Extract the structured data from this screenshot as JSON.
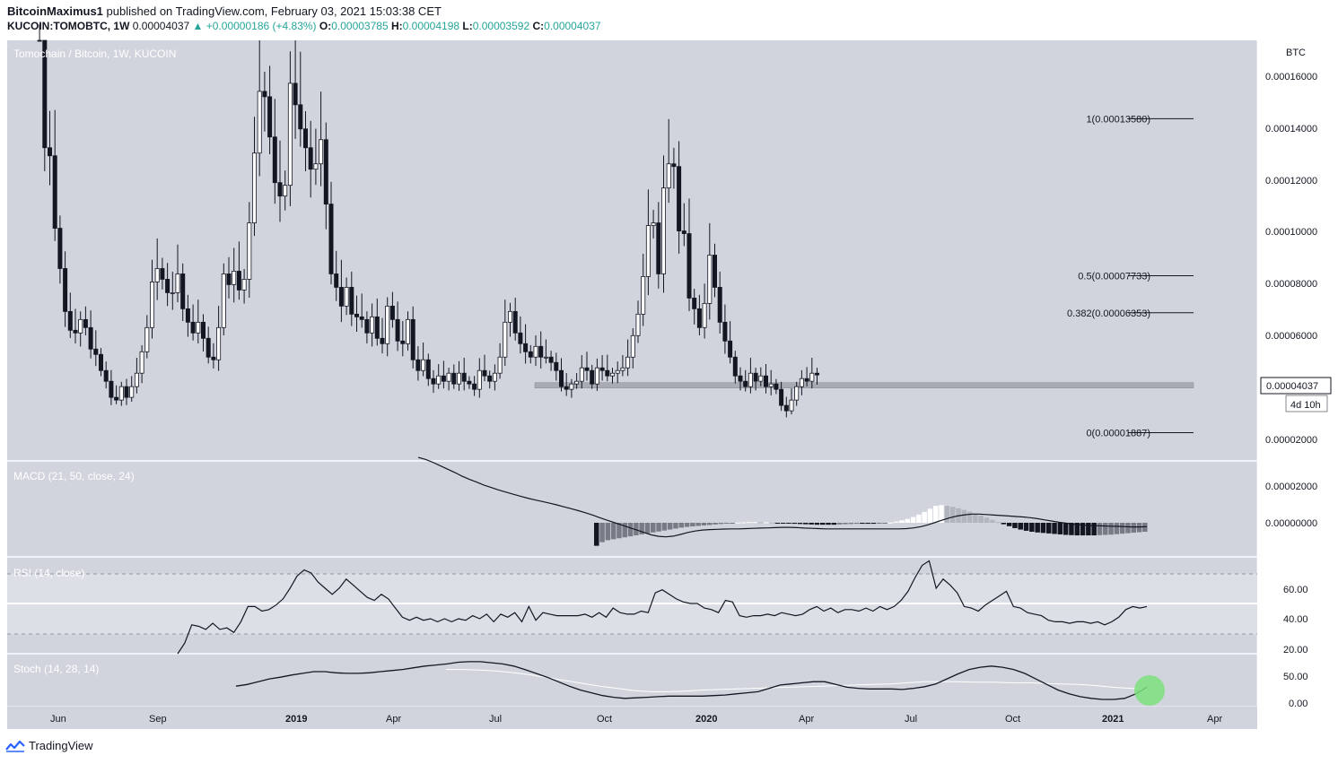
{
  "header": {
    "author": "BitcoinMaximus1",
    "published_text": "published on TradingView.com, February 03, 2021 15:03:38 CET",
    "symbol": "KUCOIN:TOMOBTC, 1W",
    "price": "0.00004037",
    "change": "+0.00000186 (+4.83%)",
    "o_label": "O:",
    "o_val": "0.00003785",
    "h_label": "H:",
    "h_val": "0.00004198",
    "l_label": "L:",
    "l_val": "0.00003592",
    "c_label": "C:",
    "c_val": "0.00004037"
  },
  "footer": {
    "brand": "TradingView"
  },
  "colors": {
    "pane_bg": "#d1d4dc",
    "up": "#ffffff",
    "down": "#131722",
    "highlight": "#7ee07e"
  },
  "chart_data": [
    {
      "type": "candlestick",
      "title": "Tomochain / Bitcoin, 1W, KUCOIN",
      "unit_label": "BTC",
      "yticks": [
        "0.00016000",
        "0.00014000",
        "0.00012000",
        "0.00010000",
        "0.00008000",
        "0.00006000",
        "0.00004000",
        "0.00002000"
      ],
      "x_ticks": [
        "Jun",
        "Sep",
        "2019",
        "Apr",
        "Jul",
        "Oct",
        "2020",
        "Apr",
        "Jul",
        "Oct",
        "2021",
        "Apr"
      ],
      "ylim": [
        9e-06,
        0.000165
      ],
      "last_price": "0.00004037",
      "countdown": "4d 10h",
      "support_zone": [
        3.55e-05,
        3.75e-05
      ],
      "fib_levels": [
        {
          "label": "1(0.00013580)",
          "value": 0.0001358
        },
        {
          "label": "0.5(0.00007733)",
          "value": 7.733e-05
        },
        {
          "label": "0.382(0.00006353)",
          "value": 6.353e-05
        },
        {
          "label": "0(0.00001887)",
          "value": 1.887e-05
        }
      ],
      "closes": [
        0.00018,
        0.000125,
        0.000122,
        9.5e-05,
        8e-05,
        6.4e-05,
        5.7e-05,
        5.6e-05,
        6.1e-05,
        5.8e-05,
        5e-05,
        4.8e-05,
        4.2e-05,
        3.8e-05,
        3.2e-05,
        3.1e-05,
        3.6e-05,
        3.2e-05,
        3.6e-05,
        4.1e-05,
        4.9e-05,
        5.8e-05,
        7.5e-05,
        8e-05,
        7.6e-05,
        7.1e-05,
        7.1e-05,
        7.8e-05,
        6.5e-05,
        6e-05,
        5.6e-05,
        6e-05,
        5.4e-05,
        4.7e-05,
        4.6e-05,
        5.8e-05,
        7.8e-05,
        7.4e-05,
        7.9e-05,
        7.2e-05,
        7.6e-05,
        9.7e-05,
        0.000123,
        0.000146,
        0.000144,
        0.000129,
        0.000112,
        0.000107,
        0.000111,
        0.000149,
        0.000141,
        0.000132,
        0.000125,
        0.000117,
        0.000119,
        0.000128,
        0.000104,
        7.8e-05,
        7.3e-05,
        6.6e-05,
        7.3e-05,
        6.3e-05,
        6.2e-05,
        6.1e-05,
        5.6e-05,
        6.2e-05,
        5.4e-05,
        5.2e-05,
        6.6e-05,
        6.1e-05,
        5.3e-05,
        5.2e-05,
        6.1e-05,
        4.6e-05,
        4.2e-05,
        4.6e-05,
        3.9e-05,
        3.7e-05,
        4e-05,
        3.8e-05,
        4.1e-05,
        3.7e-05,
        4.1e-05,
        3.8e-05,
        3.7e-05,
        3.5e-05,
        4.2e-05,
        4e-05,
        3.8e-05,
        4.1e-05,
        4.7e-05,
        6e-05,
        6.4e-05,
        5.6e-05,
        5.2e-05,
        4.9e-05,
        4.7e-05,
        5.1e-05,
        4.7e-05,
        4.7e-05,
        4.5e-05,
        4.2e-05,
        3.6e-05,
        3.5e-05,
        3.7e-05,
        3.8e-05,
        4.3e-05,
        4.2e-05,
        3.7e-05,
        4.3e-05,
        4.2e-05,
        4e-05,
        4.1e-05,
        4.2e-05,
        4.3e-05,
        4.7e-05,
        5.5e-05,
        6.3e-05,
        7.7e-05,
        9.6e-05,
        9.7e-05,
        7.8e-05,
        0.00011,
        0.000119,
        0.000118,
        9.4e-05,
        9.3e-05,
        6.9e-05,
        6.5e-05,
        5.8e-05,
        6.7e-05,
        8.5e-05,
        7.3e-05,
        6e-05,
        5.3e-05,
        4.7e-05,
        4e-05,
        3.8e-05,
        3.6e-05,
        4.1e-05,
        3.8e-05,
        4e-05,
        3.6e-05,
        3.7e-05,
        3.5e-05,
        2.9e-05,
        2.7e-05,
        3.1e-05,
        3.6e-05,
        3.9e-05,
        3.8e-05,
        4.1e-05,
        4.037e-05
      ],
      "macd": [
        2.7e-05,
        2.62e-05,
        2.5e-05,
        2.36e-05,
        2.22e-05,
        2.08e-05,
        1.93e-05,
        1.8e-05,
        1.68e-05,
        1.56e-05,
        1.46e-05,
        1.36e-05,
        1.27e-05,
        1.18e-05,
        1.1e-05,
        1.02e-05,
        9.5e-06,
        8.8e-06,
        8.1e-06,
        7.4e-06,
        6.6e-06,
        5.8e-06,
        5e-06,
        4.1e-06,
        3.1e-06,
        2e-06,
        1e-06,
        0.0,
        -1e-06,
        -2e-06,
        -3e-06,
        -4e-06,
        -5e-06,
        -5.6e-06,
        -5.8e-06,
        -5.5e-06,
        -4.8e-06,
        -4e-06,
        -3.4e-06,
        -3e-06,
        -2.8e-06,
        -2.7e-06,
        -2.6e-06,
        -2.5e-06,
        -2.5e-06,
        -2.4e-06,
        -2.3e-06,
        -2.2e-06,
        -2.1e-06,
        -2e-06,
        -1.9e-06,
        -1.9e-06,
        -2e-06,
        -2.2e-06,
        -2.3e-06,
        -2.4e-06,
        -2.5e-06,
        -2.5e-06,
        -2.5e-06,
        -2.5e-06,
        -2.5e-06,
        -2.5e-06,
        -2.5e-06,
        -2.5e-06,
        -2.5e-06,
        -2.5e-06,
        -2.5e-06,
        -2.4e-06,
        -2.1e-06,
        -1.6e-06,
        -8e-07,
        2e-07,
        1.2e-06,
        2.1e-06,
        2.8e-06,
        3.3e-06,
        3.6e-06,
        3.6e-06,
        3.4e-06,
        3.2e-06,
        3e-06,
        2.8e-06,
        2.6e-06,
        2.4e-06,
        2.1e-06,
        1.7e-06,
        1.2e-06,
        7e-07,
        2e-07,
        -2e-07,
        -6e-07,
        -9e-07,
        -1.1e-06,
        -1.2e-06,
        -1.3e-06,
        -1.4e-06,
        -1.5e-06,
        -1.6e-06,
        -1.7e-06,
        -1.7e-06,
        -1.6e-06
      ],
      "macd_hist": [
        -9.5e-06,
        -8e-06,
        -7.2e-06,
        -6.8e-06,
        -6.4e-06,
        -6e-06,
        -5.6e-06,
        -5.2e-06,
        -4.8e-06,
        -4.4e-06,
        -4e-06,
        -3.6e-06,
        -3.2e-06,
        -2.8e-06,
        -2.4e-06,
        -2e-06,
        -1.7e-06,
        -1.5e-06,
        -1.3e-06,
        -1.1e-06,
        -9e-07,
        -7e-07,
        -5e-07,
        -3e-07,
        -1e-07,
        1e-07,
        2e-07,
        3e-07,
        3e-07,
        2e-07,
        2e-07,
        1e-07,
        -1e-07,
        -2e-07,
        -3e-07,
        -4e-07,
        -5e-07,
        -6e-07,
        -7e-07,
        -8e-07,
        -8e-07,
        -8e-07,
        -8e-07,
        -7e-07,
        -6e-07,
        -5e-07,
        -4e-07,
        -4e-07,
        -4e-07,
        -4e-07,
        -3e-07,
        -2e-07,
        1e-07,
        5e-07,
        1e-06,
        1.6e-06,
        2.4e-06,
        3.4e-06,
        4.5e-06,
        5.8e-06,
        7e-06,
        7.3e-06,
        7e-06,
        6.6e-06,
        6e-06,
        5.3e-06,
        4.6e-06,
        3.8e-06,
        3e-06,
        2.1e-06,
        1.2e-06,
        3e-07,
        -6e-07,
        -1.4e-06,
        -2.2e-06,
        -2.8e-06,
        -3.3e-06,
        -3.7e-06,
        -4e-06,
        -4.2e-06,
        -4.4e-06,
        -4.6e-06,
        -4.8e-06,
        -5e-06,
        -5.1e-06,
        -5.2e-06,
        -5.2e-06,
        -5.2e-06,
        -5.2e-06,
        -5.1e-06,
        -5e-06,
        -4.9e-06,
        -4.7e-06,
        -4.5e-06,
        -4.3e-06,
        -4.1e-06,
        -3.9e-06,
        -3.7e-06
      ],
      "rsi": [
        12,
        24,
        36,
        35,
        33,
        37,
        33,
        34,
        31,
        38,
        48,
        48,
        45,
        46,
        49,
        53,
        60,
        68,
        72,
        70,
        64,
        60,
        56,
        60,
        66,
        62,
        58,
        54,
        52,
        56,
        53,
        47,
        41,
        39,
        41,
        39,
        40,
        38,
        40,
        38,
        40,
        39,
        42,
        40,
        43,
        38,
        43,
        41,
        44,
        38,
        48,
        39,
        44,
        43,
        42,
        42,
        42,
        42,
        43,
        41,
        44,
        41,
        47,
        44,
        43,
        43,
        45,
        44,
        57,
        59,
        56,
        53,
        51,
        50,
        50,
        47,
        46,
        44,
        52,
        51,
        42,
        41,
        42,
        42,
        43,
        42,
        44,
        43,
        42,
        43,
        46,
        48,
        45,
        47,
        44,
        46,
        46,
        45,
        47,
        45,
        48,
        46,
        48,
        52,
        58,
        67,
        75,
        78,
        60,
        66,
        62,
        57,
        48,
        47,
        45,
        49,
        52,
        55,
        58,
        48,
        47,
        44,
        43,
        42,
        39,
        38,
        38,
        37,
        38,
        38,
        37,
        38,
        36,
        38,
        41,
        46,
        48,
        47,
        48
      ],
      "stoch_k": [
        32,
        35,
        40,
        45,
        48,
        52,
        55,
        58,
        58,
        56,
        55,
        55,
        56,
        58,
        60,
        62,
        65,
        68,
        70,
        72,
        75,
        76,
        76,
        74,
        72,
        68,
        62,
        55,
        48,
        40,
        32,
        25,
        20,
        15,
        12,
        10,
        11,
        12,
        13,
        14,
        14,
        14,
        14,
        15,
        16,
        18,
        20,
        22,
        28,
        34,
        36,
        38,
        40,
        40,
        35,
        30,
        28,
        27,
        27,
        27,
        26,
        28,
        31,
        36,
        45,
        54,
        62,
        66,
        68,
        66,
        62,
        55,
        45,
        35,
        25,
        18,
        13,
        10,
        8,
        8,
        10,
        18,
        30
      ],
      "stoch_d": [
        62,
        62,
        61,
        59,
        56,
        52,
        47,
        42,
        37,
        32,
        28,
        24,
        22,
        22,
        23,
        25,
        26,
        27,
        28,
        29,
        30,
        31,
        32,
        33,
        34,
        35,
        36,
        38,
        40,
        40,
        40,
        39,
        39,
        38,
        38,
        37,
        36,
        35,
        33,
        30,
        28,
        26
      ]
    }
  ],
  "panes": {
    "macd_title": "MACD (21, 50, close, 24)",
    "macd_ticks": [
      "0.00002000",
      "0.00000000"
    ],
    "rsi_title": "RSI (14, close)",
    "rsi_ticks": [
      "60.00",
      "40.00",
      "20.00"
    ],
    "stoch_title": "Stoch (14, 28, 14)",
    "stoch_ticks": [
      "50.00",
      "0.00"
    ]
  }
}
